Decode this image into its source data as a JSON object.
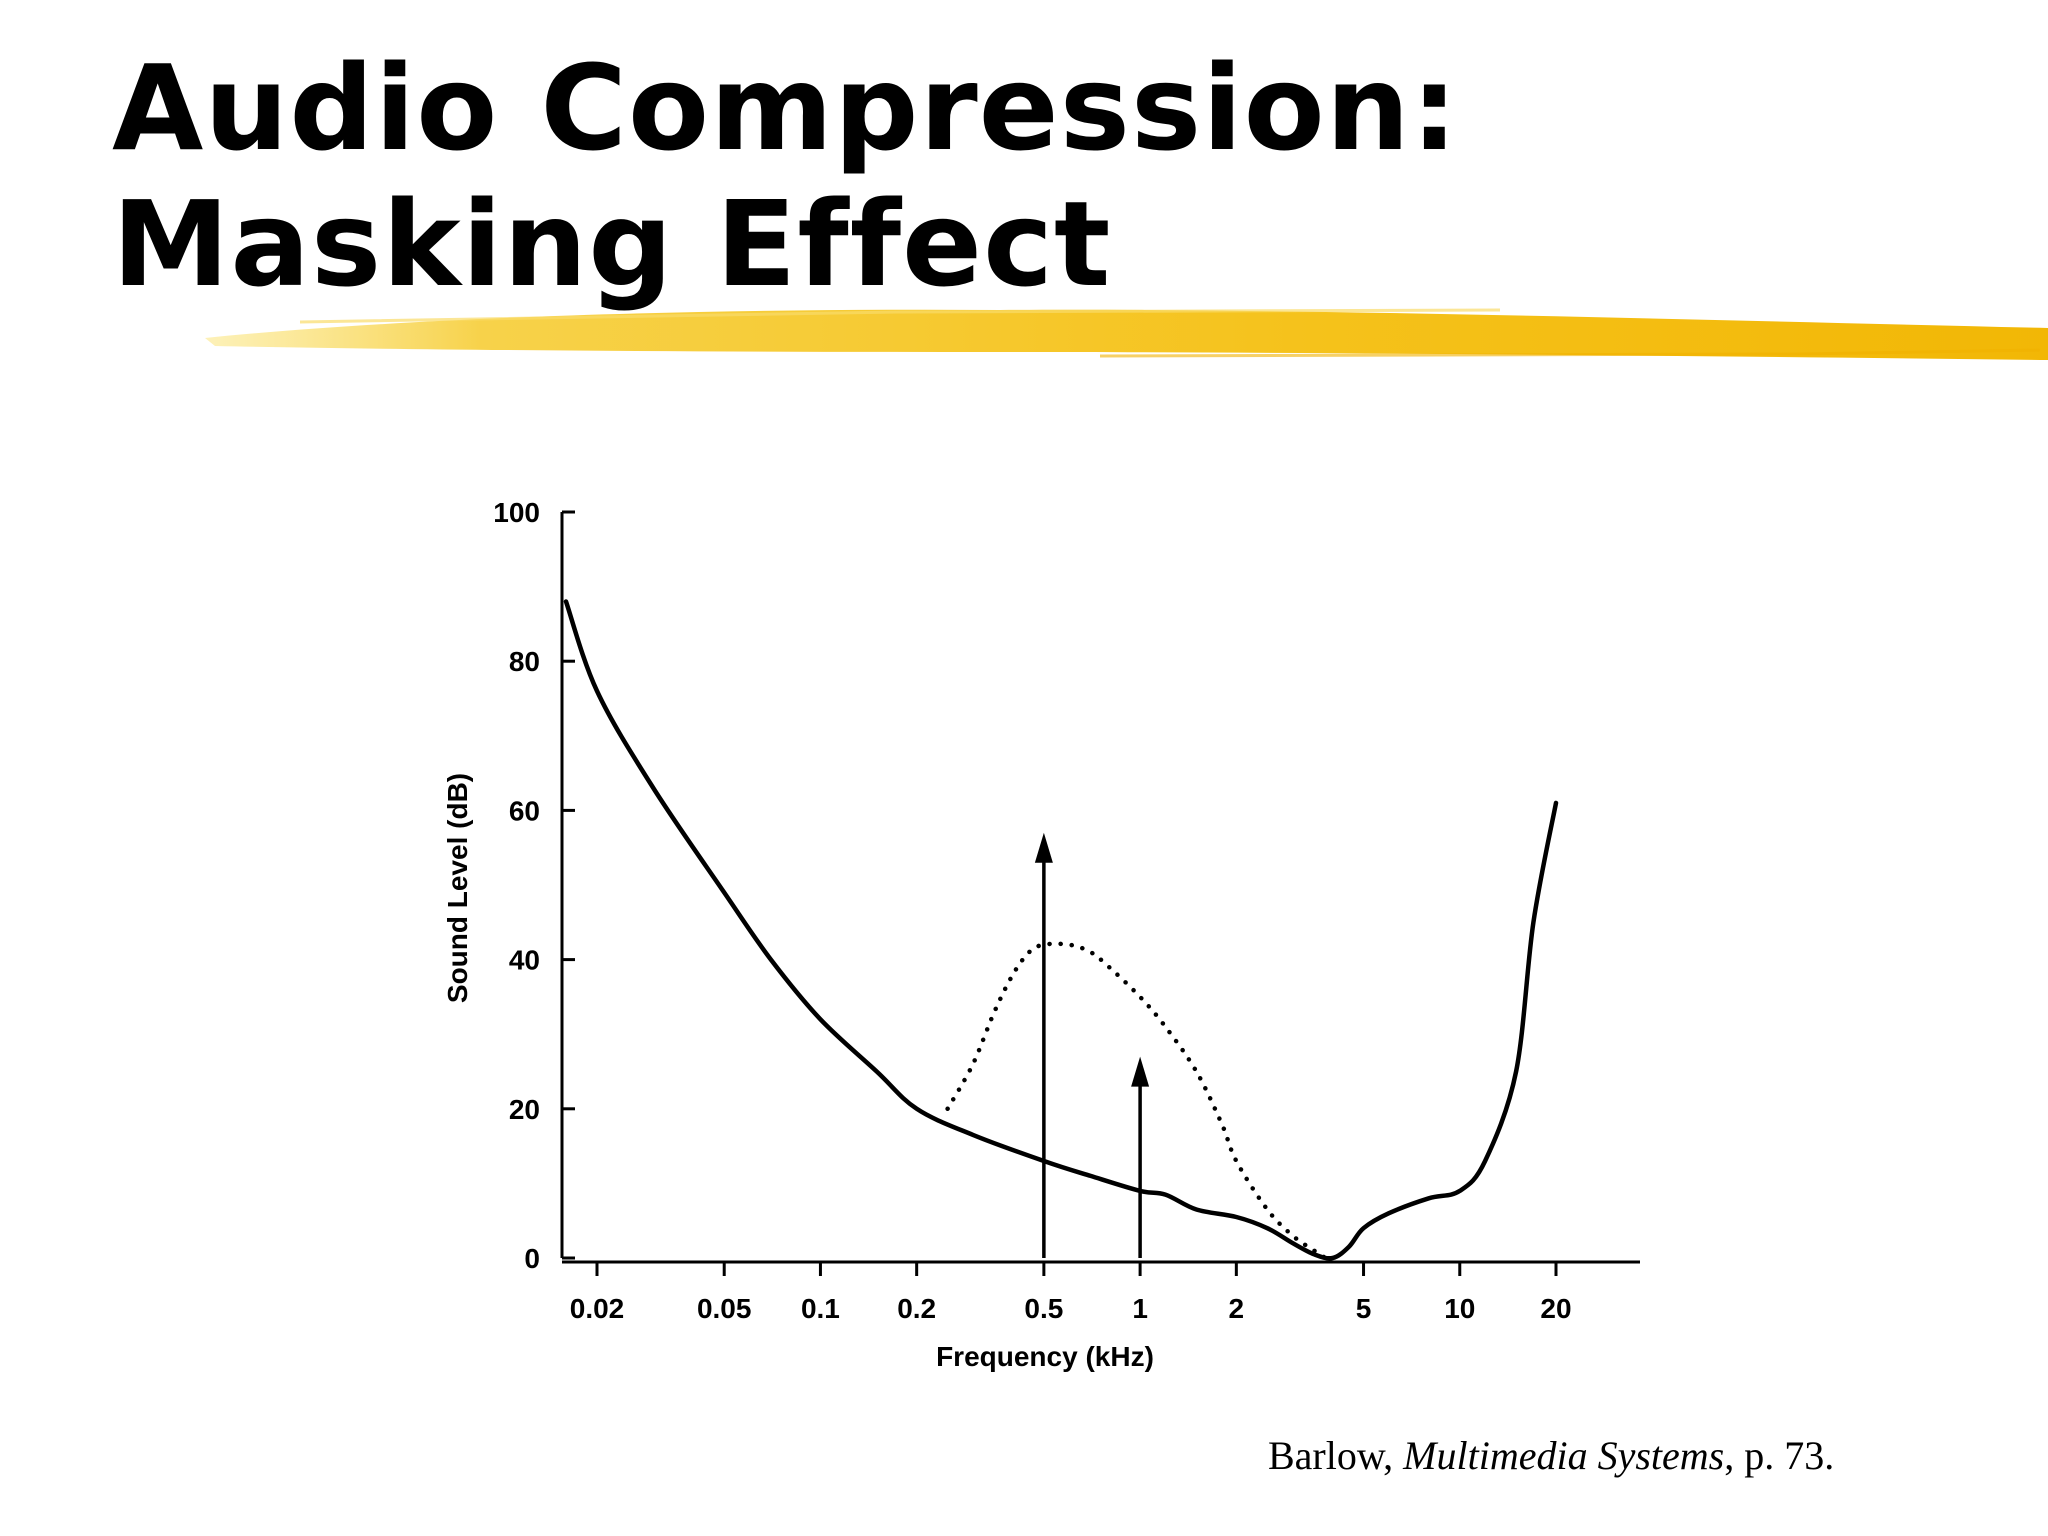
{
  "slide": {
    "title_line1": "Audio Compression:",
    "title_line2": "Masking Effect",
    "accent_color": "#F5C21B",
    "citation": {
      "author": "Barlow, ",
      "book": "Multimedia Systems",
      "page": ", p. 73."
    }
  },
  "chart_data": {
    "type": "line",
    "xlabel": "Frequency (kHz)",
    "ylabel": "Sound Level (dB)",
    "x_scale": "log",
    "xlim": [
      0.016,
      35
    ],
    "ylim": [
      0,
      100
    ],
    "x_ticks": [
      0.02,
      0.05,
      0.1,
      0.2,
      0.5,
      1,
      2,
      5,
      10,
      20
    ],
    "x_tick_labels": [
      "0.02",
      "0.05",
      "0.1",
      "0.2",
      "0.5",
      "1",
      "2",
      "5",
      "10",
      "20"
    ],
    "y_ticks": [
      0,
      20,
      40,
      60,
      80,
      100
    ],
    "y_tick_labels": [
      "0",
      "20",
      "40",
      "60",
      "80",
      "100"
    ],
    "grid": false,
    "series": [
      {
        "style": "solid",
        "x": [
          0.016,
          0.02,
          0.03,
          0.05,
          0.07,
          0.1,
          0.15,
          0.2,
          0.3,
          0.5,
          0.7,
          1.0,
          1.2,
          1.5,
          2.0,
          2.5,
          3.0,
          3.5,
          4.0,
          4.5,
          5.0,
          6.0,
          8.0,
          10.0,
          12.0,
          15.0,
          17.0,
          20.0
        ],
        "y": [
          88,
          76,
          63,
          49,
          40,
          32,
          25,
          20,
          16.5,
          13,
          11,
          9,
          8.5,
          6.5,
          5.5,
          4,
          2,
          0.5,
          0,
          1.5,
          4,
          6,
          8,
          9,
          13,
          25,
          45,
          61
        ]
      },
      {
        "style": "dotted",
        "x": [
          0.25,
          0.3,
          0.35,
          0.4,
          0.45,
          0.5,
          0.6,
          0.7,
          0.8,
          1.0,
          1.2,
          1.5,
          1.8,
          2.0,
          2.5,
          3.0,
          3.5,
          3.8
        ],
        "y": [
          20,
          26,
          33,
          38,
          41,
          42,
          42,
          41,
          39,
          35,
          31,
          25,
          18,
          13,
          6.5,
          3,
          1,
          0
        ]
      }
    ],
    "arrows": [
      {
        "x": 0.5,
        "y_from": 0,
        "y_to": 57
      },
      {
        "x": 1.0,
        "y_from": 0,
        "y_to": 27
      }
    ]
  }
}
